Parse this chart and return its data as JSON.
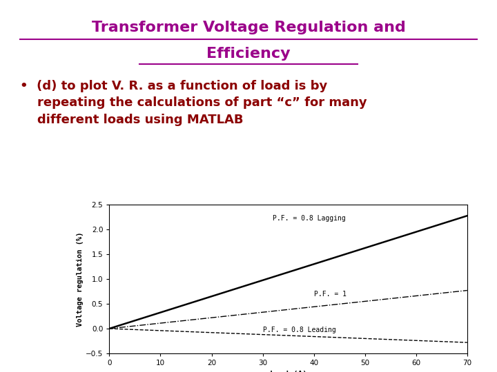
{
  "title_line1": "Transformer Voltage Regulation and",
  "title_line2": "Efficiency",
  "title_color": "#9B008A",
  "bullet_text_line1": "(d) to plot V. R. as a function of load is by",
  "bullet_text_line2": "repeating the calculations of part “c” for many",
  "bullet_text_line3": "different loads using MATLAB",
  "bullet_color": "#8B0000",
  "bg_color": "#FFFFFF",
  "x_load": [
    0,
    10,
    20,
    30,
    40,
    50,
    60,
    70
  ],
  "vr_lagging": [
    0.0,
    0.325,
    0.65,
    0.975,
    1.3,
    1.625,
    1.95,
    2.275
  ],
  "vr_unity": [
    0.0,
    0.11,
    0.22,
    0.33,
    0.44,
    0.55,
    0.66,
    0.77
  ],
  "vr_leading": [
    0.0,
    -0.04,
    -0.08,
    -0.12,
    -0.16,
    -0.2,
    -0.24,
    -0.28
  ],
  "xlabel": "Load (A)",
  "ylabel": "Voltage regulation (%)",
  "xlim": [
    0,
    70
  ],
  "ylim": [
    -0.5,
    2.5
  ],
  "yticks": [
    -0.5,
    0,
    0.5,
    1.0,
    1.5,
    2.0,
    2.5
  ],
  "xticks": [
    0,
    10,
    20,
    30,
    40,
    50,
    60,
    70
  ],
  "label_lagging": "P.F. = 0.8 Lagging",
  "label_unity": "P.F. = 1",
  "label_leading": "P.F. = 0.8 Leading",
  "line_color": "#000000"
}
